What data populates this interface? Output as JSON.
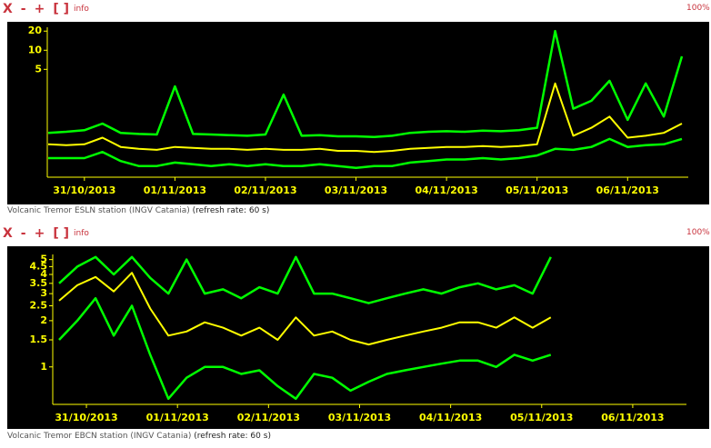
{
  "panels": [
    {
      "toolbar": [
        "X",
        "-",
        "+",
        "[ ]"
      ],
      "info": "info",
      "zoom": "100%",
      "caption": "Volcanic Tremor ESLN station (INGV Catania)",
      "caption_note": "(refresh rate: 60 s)"
    },
    {
      "toolbar": [
        "X",
        "-",
        "+",
        "[ ]"
      ],
      "info": "info",
      "zoom": "100%",
      "caption": "Volcanic Tremor EBCN station (INGV Catania)",
      "caption_note": "(refresh rate: 60 s)"
    }
  ],
  "chart_data": [
    {
      "type": "line",
      "log_y": true,
      "x": [
        -0.4,
        -0.2,
        0,
        0.2,
        0.4,
        0.6,
        0.8,
        1.0,
        1.2,
        1.4,
        1.6,
        1.8,
        2.0,
        2.2,
        2.4,
        2.6,
        2.8,
        3.0,
        3.2,
        3.4,
        3.6,
        3.8,
        4.0,
        4.2,
        4.4,
        4.6,
        4.8,
        5.0,
        5.2,
        5.4,
        5.6,
        5.8,
        6.0,
        6.2,
        6.4,
        6.6
      ],
      "series": [
        {
          "color": "#00ff00",
          "values": [
            0.5,
            0.52,
            0.55,
            0.7,
            0.5,
            0.48,
            0.47,
            2.7,
            0.48,
            0.47,
            0.46,
            0.45,
            0.47,
            2.0,
            0.45,
            0.46,
            0.44,
            0.44,
            0.43,
            0.45,
            0.5,
            0.52,
            0.53,
            0.52,
            0.54,
            0.53,
            0.55,
            0.6,
            20,
            1.2,
            1.6,
            3.3,
            0.8,
            3.0,
            0.9,
            8
          ]
        },
        {
          "color": "#00ff00",
          "values": [
            0.2,
            0.2,
            0.2,
            0.25,
            0.18,
            0.15,
            0.15,
            0.17,
            0.16,
            0.15,
            0.16,
            0.15,
            0.16,
            0.15,
            0.15,
            0.16,
            0.15,
            0.14,
            0.15,
            0.15,
            0.17,
            0.18,
            0.19,
            0.19,
            0.2,
            0.19,
            0.2,
            0.22,
            0.28,
            0.27,
            0.3,
            0.4,
            0.3,
            0.32,
            0.33,
            0.4
          ]
        },
        {
          "color": "#ffff00",
          "values": [
            0.33,
            0.32,
            0.33,
            0.42,
            0.3,
            0.28,
            0.27,
            0.3,
            0.29,
            0.28,
            0.28,
            0.27,
            0.28,
            0.27,
            0.27,
            0.28,
            0.26,
            0.26,
            0.25,
            0.26,
            0.28,
            0.29,
            0.3,
            0.3,
            0.31,
            0.3,
            0.31,
            0.33,
            3.0,
            0.45,
            0.6,
            0.9,
            0.42,
            0.45,
            0.5,
            0.7
          ]
        }
      ],
      "xlim": [
        -0.41,
        6.67
      ],
      "xticks": [
        {
          "value": 0,
          "label": "31/10/2013"
        },
        {
          "value": 1,
          "label": "01/11/2013"
        },
        {
          "value": 2,
          "label": "02/11/2013"
        },
        {
          "value": 3,
          "label": "03/11/2013"
        },
        {
          "value": 4,
          "label": "04/11/2013"
        },
        {
          "value": 5,
          "label": "05/11/2013"
        },
        {
          "value": 6,
          "label": "06/11/2013"
        }
      ],
      "ylim": [
        0.1,
        23
      ],
      "yticks": [
        5,
        10,
        20
      ]
    },
    {
      "type": "line",
      "log_y": true,
      "x": [
        -0.3,
        -0.1,
        0.1,
        0.3,
        0.5,
        0.7,
        0.9,
        1.1,
        1.3,
        1.5,
        1.7,
        1.9,
        2.1,
        2.3,
        2.5,
        2.7,
        2.9,
        3.1,
        3.3,
        3.5,
        3.7,
        3.9,
        4.1,
        4.3,
        4.5,
        4.7,
        4.9,
        5.1
      ],
      "series": [
        {
          "color": "#00ff00",
          "values": [
            3.5,
            4.5,
            5.2,
            4.0,
            5.2,
            3.8,
            3.0,
            5.0,
            3.0,
            3.2,
            2.8,
            3.3,
            3.0,
            5.2,
            3.0,
            3.0,
            2.8,
            2.6,
            2.8,
            3.0,
            3.2,
            3.0,
            3.3,
            3.5,
            3.2,
            3.4,
            3.0,
            5.2
          ]
        },
        {
          "color": "#00ff00",
          "values": [
            1.5,
            2.0,
            2.8,
            1.6,
            2.5,
            1.2,
            0.62,
            0.85,
            1.0,
            1.0,
            0.9,
            0.95,
            0.75,
            0.62,
            0.9,
            0.85,
            0.7,
            0.8,
            0.9,
            0.95,
            1.0,
            1.05,
            1.1,
            1.1,
            1.0,
            1.2,
            1.1,
            1.2
          ]
        },
        {
          "color": "#ffff00",
          "values": [
            2.7,
            3.4,
            3.85,
            3.1,
            4.1,
            2.4,
            1.6,
            1.7,
            1.95,
            1.8,
            1.6,
            1.8,
            1.5,
            2.1,
            1.6,
            1.7,
            1.5,
            1.4,
            1.5,
            1.6,
            1.7,
            1.8,
            1.95,
            1.95,
            1.8,
            2.1,
            1.8,
            2.1
          ]
        }
      ],
      "xlim": [
        -0.37,
        6.59
      ],
      "xticks": [
        {
          "value": 0,
          "label": "31/10/2013"
        },
        {
          "value": 1,
          "label": "01/11/2013"
        },
        {
          "value": 2,
          "label": "02/11/2013"
        },
        {
          "value": 3,
          "label": "03/11/2013"
        },
        {
          "value": 4,
          "label": "04/11/2013"
        },
        {
          "value": 5,
          "label": "05/11/2013"
        },
        {
          "value": 6,
          "label": "06/11/2013"
        }
      ],
      "ylim": [
        0.57,
        5.4
      ],
      "yticks": [
        1,
        1.5,
        2,
        2.5,
        3,
        3.5,
        4,
        4.5,
        5
      ]
    }
  ]
}
